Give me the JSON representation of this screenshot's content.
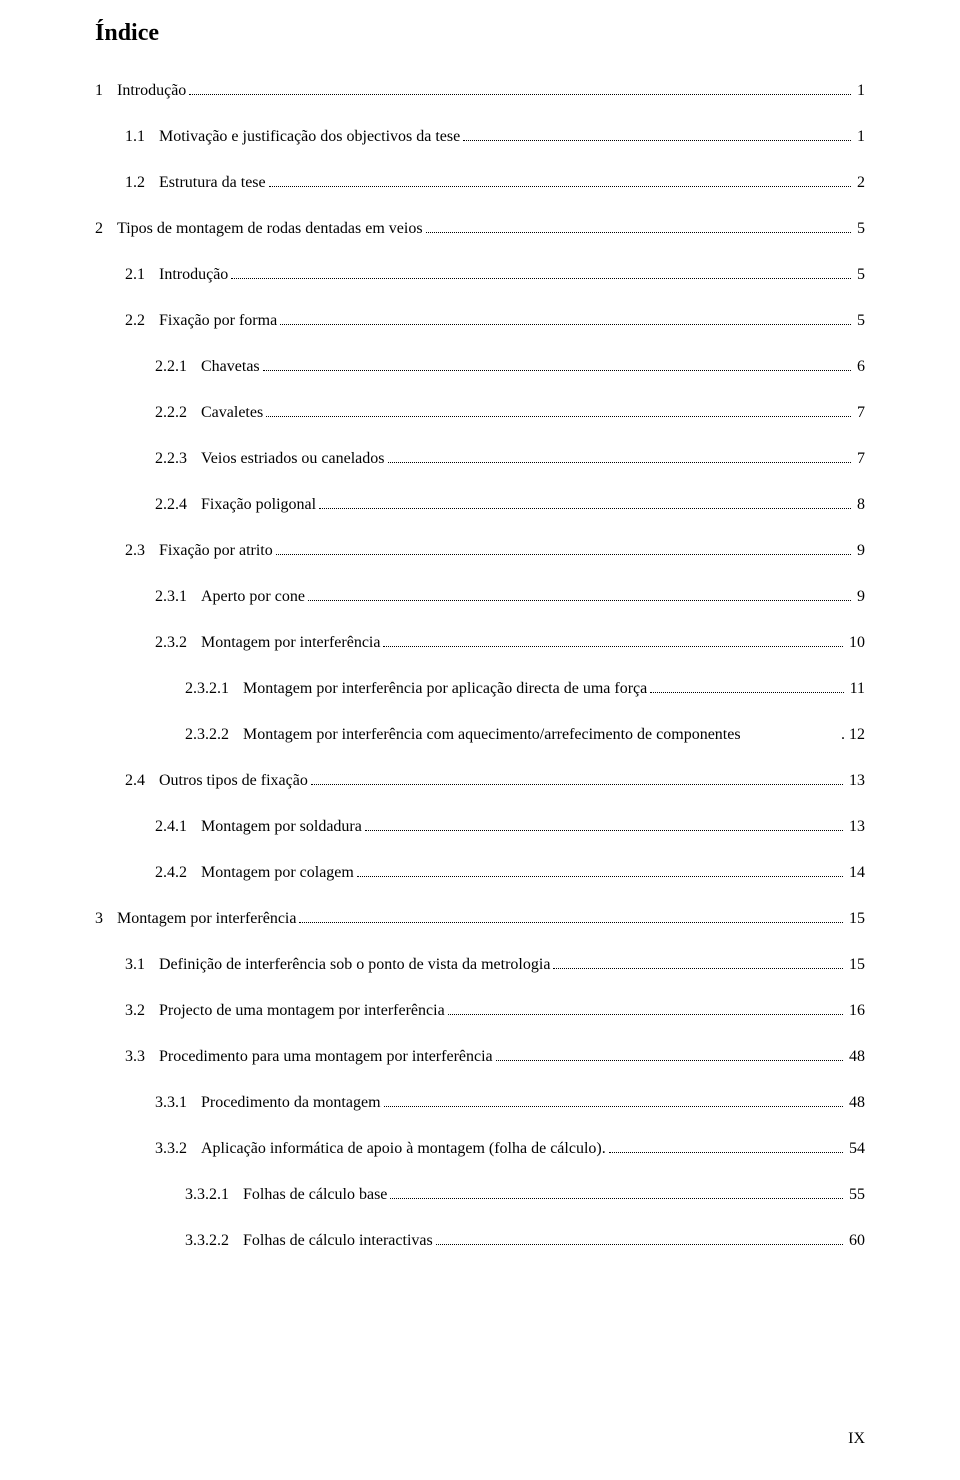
{
  "title": "Índice",
  "page_number": "IX",
  "font": {
    "family": "Times New Roman",
    "title_size": 24,
    "body_size": 16
  },
  "colors": {
    "background": "#ffffff",
    "text": "#000000"
  },
  "entries": [
    {
      "level": 0,
      "num": "1",
      "text": "Introdução",
      "page": "1"
    },
    {
      "level": 1,
      "num": "1.1",
      "text": "Motivação e justificação dos objectivos da tese",
      "page": "1"
    },
    {
      "level": 1,
      "num": "1.2",
      "text": "Estrutura da tese",
      "page": "2"
    },
    {
      "level": 0,
      "num": "2",
      "text": "Tipos de montagem de rodas dentadas em veios",
      "page": "5"
    },
    {
      "level": 1,
      "num": "2.1",
      "text": "Introdução",
      "page": "5"
    },
    {
      "level": 1,
      "num": "2.2",
      "text": "Fixação por forma",
      "page": "5"
    },
    {
      "level": 2,
      "num": "2.2.1",
      "text": "Chavetas",
      "page": "6"
    },
    {
      "level": 2,
      "num": "2.2.2",
      "text": "Cavaletes",
      "page": "7"
    },
    {
      "level": 2,
      "num": "2.2.3",
      "text": "Veios estriados ou canelados",
      "page": "7"
    },
    {
      "level": 2,
      "num": "2.2.4",
      "text": "Fixação poligonal",
      "page": "8"
    },
    {
      "level": 1,
      "num": "2.3",
      "text": "Fixação por atrito",
      "page": "9"
    },
    {
      "level": 2,
      "num": "2.3.1",
      "text": "Aperto por cone",
      "page": "9"
    },
    {
      "level": 2,
      "num": "2.3.2",
      "text": "Montagem por interferência",
      "page": "10"
    },
    {
      "level": 3,
      "num": "2.3.2.1",
      "text": "Montagem por interferência por aplicação directa de uma força",
      "page": "11"
    },
    {
      "level": 3,
      "num": "2.3.2.2",
      "text": "Montagem por interferência com aquecimento/arrefecimento de componentes",
      "page": ". 12",
      "nodots": true
    },
    {
      "level": 1,
      "num": "2.4",
      "text": "Outros tipos de fixação",
      "page": "13"
    },
    {
      "level": 2,
      "num": "2.4.1",
      "text": "Montagem por soldadura",
      "page": "13"
    },
    {
      "level": 2,
      "num": "2.4.2",
      "text": "Montagem por colagem",
      "page": "14"
    },
    {
      "level": 0,
      "num": "3",
      "text": "Montagem por interferência",
      "page": "15"
    },
    {
      "level": 1,
      "num": "3.1",
      "text": "Definição de interferência sob o ponto de vista da metrologia",
      "page": "15"
    },
    {
      "level": 1,
      "num": "3.2",
      "text": "Projecto de uma montagem por interferência",
      "page": "16"
    },
    {
      "level": 1,
      "num": "3.3",
      "text": "Procedimento para uma montagem por interferência",
      "page": "48"
    },
    {
      "level": 2,
      "num": "3.3.1",
      "text": "Procedimento da montagem",
      "page": "48"
    },
    {
      "level": 2,
      "num": "3.3.2",
      "text": "Aplicação informática de apoio à montagem (folha de cálculo).",
      "page": "54"
    },
    {
      "level": 3,
      "num": "3.3.2.1",
      "text": "Folhas de cálculo base",
      "page": "55"
    },
    {
      "level": 3,
      "num": "3.3.2.2",
      "text": "Folhas de cálculo interactivas",
      "page": "60"
    }
  ]
}
